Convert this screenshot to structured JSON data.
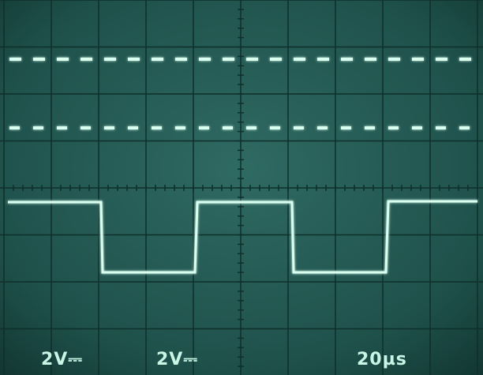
{
  "screen": {
    "readouts": [
      "2V⎓",
      "2V⎓",
      "20µs"
    ]
  }
}
